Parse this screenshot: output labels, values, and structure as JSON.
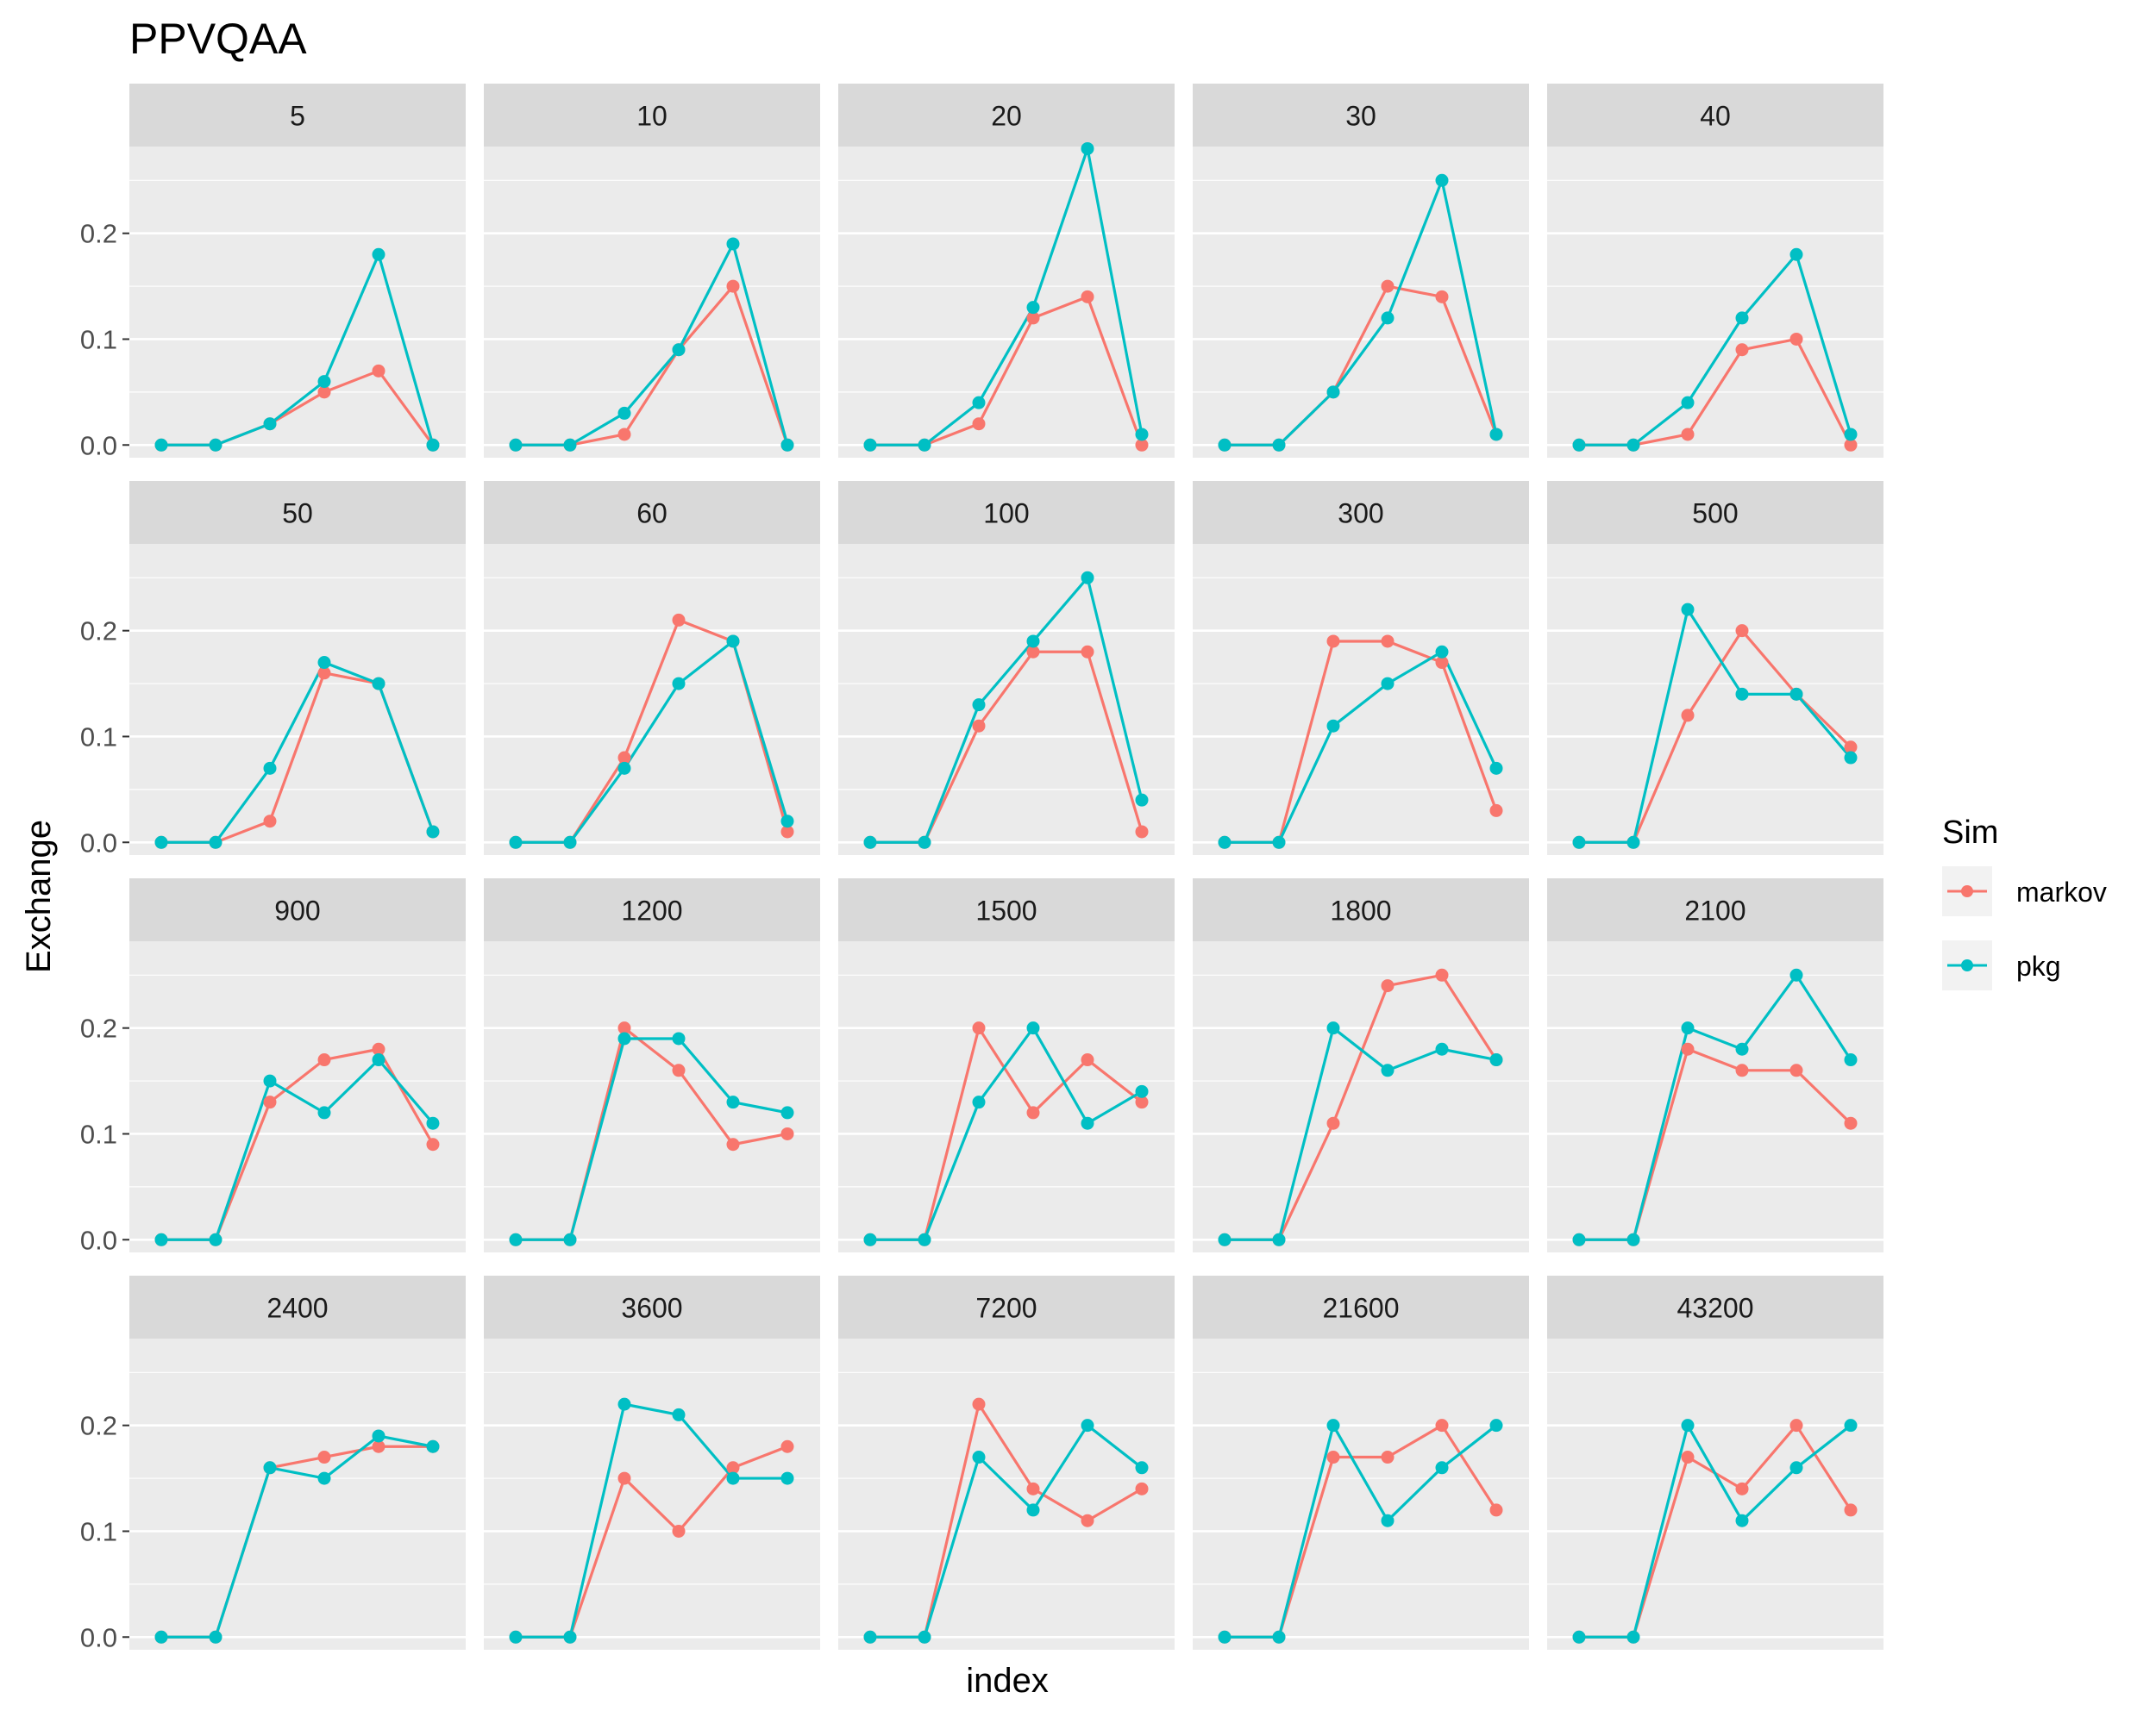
{
  "chart_data": {
    "type": "line",
    "title": "PPVQAA",
    "xlabel": "index",
    "ylabel": "Exchange",
    "ylim": [
      -0.012,
      0.282
    ],
    "y_ticks": [
      "0.0",
      "0.1",
      "0.2"
    ],
    "x_ticks": [],
    "grid": true,
    "legend": {
      "title": "Sim",
      "position": "right",
      "entries": [
        "markov",
        "pkg"
      ]
    },
    "colors": {
      "markov": "#F8766D",
      "pkg": "#00BFC4",
      "panel_bg": "#EBEBEB",
      "strip_bg": "#D9D9D9"
    },
    "x": [
      1,
      2,
      3,
      4,
      5,
      6
    ],
    "facets": [
      {
        "label": "5",
        "series": [
          {
            "name": "markov",
            "values": [
              0,
              0,
              0.02,
              0.05,
              0.07,
              0
            ]
          },
          {
            "name": "pkg",
            "values": [
              0,
              0,
              0.02,
              0.06,
              0.18,
              0
            ]
          }
        ]
      },
      {
        "label": "10",
        "series": [
          {
            "name": "markov",
            "values": [
              0,
              0,
              0.01,
              0.09,
              0.15,
              0
            ]
          },
          {
            "name": "pkg",
            "values": [
              0,
              0,
              0.03,
              0.09,
              0.19,
              0
            ]
          }
        ]
      },
      {
        "label": "20",
        "series": [
          {
            "name": "markov",
            "values": [
              0,
              0,
              0.02,
              0.12,
              0.14,
              0
            ]
          },
          {
            "name": "pkg",
            "values": [
              0,
              0,
              0.04,
              0.13,
              0.28,
              0.01
            ]
          }
        ]
      },
      {
        "label": "30",
        "series": [
          {
            "name": "markov",
            "values": [
              0,
              0,
              0.05,
              0.15,
              0.14,
              0.01
            ]
          },
          {
            "name": "pkg",
            "values": [
              0,
              0,
              0.05,
              0.12,
              0.25,
              0.01
            ]
          }
        ]
      },
      {
        "label": "40",
        "series": [
          {
            "name": "markov",
            "values": [
              0,
              0,
              0.01,
              0.09,
              0.1,
              0
            ]
          },
          {
            "name": "pkg",
            "values": [
              0,
              0,
              0.04,
              0.12,
              0.18,
              0.01
            ]
          }
        ]
      },
      {
        "label": "50",
        "series": [
          {
            "name": "markov",
            "values": [
              0,
              0,
              0.02,
              0.16,
              0.15,
              0.01
            ]
          },
          {
            "name": "pkg",
            "values": [
              0,
              0,
              0.07,
              0.17,
              0.15,
              0.01
            ]
          }
        ]
      },
      {
        "label": "60",
        "series": [
          {
            "name": "markov",
            "values": [
              0,
              0,
              0.08,
              0.21,
              0.19,
              0.01
            ]
          },
          {
            "name": "pkg",
            "values": [
              0,
              0,
              0.07,
              0.15,
              0.19,
              0.02
            ]
          }
        ]
      },
      {
        "label": "100",
        "series": [
          {
            "name": "markov",
            "values": [
              0,
              0,
              0.11,
              0.18,
              0.18,
              0.01
            ]
          },
          {
            "name": "pkg",
            "values": [
              0,
              0,
              0.13,
              0.19,
              0.25,
              0.04
            ]
          }
        ]
      },
      {
        "label": "300",
        "series": [
          {
            "name": "markov",
            "values": [
              0,
              0,
              0.19,
              0.19,
              0.17,
              0.03
            ]
          },
          {
            "name": "pkg",
            "values": [
              0,
              0,
              0.11,
              0.15,
              0.18,
              0.07
            ]
          }
        ]
      },
      {
        "label": "500",
        "series": [
          {
            "name": "markov",
            "values": [
              0,
              0,
              0.12,
              0.2,
              0.14,
              0.09
            ]
          },
          {
            "name": "pkg",
            "values": [
              0,
              0,
              0.22,
              0.14,
              0.14,
              0.08
            ]
          }
        ]
      },
      {
        "label": "900",
        "series": [
          {
            "name": "markov",
            "values": [
              0,
              0,
              0.13,
              0.17,
              0.18,
              0.09
            ]
          },
          {
            "name": "pkg",
            "values": [
              0,
              0,
              0.15,
              0.12,
              0.17,
              0.11
            ]
          }
        ]
      },
      {
        "label": "1200",
        "series": [
          {
            "name": "markov",
            "values": [
              0,
              0,
              0.2,
              0.16,
              0.09,
              0.1
            ]
          },
          {
            "name": "pkg",
            "values": [
              0,
              0,
              0.19,
              0.19,
              0.13,
              0.12
            ]
          }
        ]
      },
      {
        "label": "1500",
        "series": [
          {
            "name": "markov",
            "values": [
              0,
              0,
              0.2,
              0.12,
              0.17,
              0.13
            ]
          },
          {
            "name": "pkg",
            "values": [
              0,
              0,
              0.13,
              0.2,
              0.11,
              0.14
            ]
          }
        ]
      },
      {
        "label": "1800",
        "series": [
          {
            "name": "markov",
            "values": [
              0,
              0,
              0.11,
              0.24,
              0.25,
              0.17
            ]
          },
          {
            "name": "pkg",
            "values": [
              0,
              0,
              0.2,
              0.16,
              0.18,
              0.17
            ]
          }
        ]
      },
      {
        "label": "2100",
        "series": [
          {
            "name": "markov",
            "values": [
              0,
              0,
              0.18,
              0.16,
              0.16,
              0.11
            ]
          },
          {
            "name": "pkg",
            "values": [
              0,
              0,
              0.2,
              0.18,
              0.25,
              0.17
            ]
          }
        ]
      },
      {
        "label": "2400",
        "series": [
          {
            "name": "markov",
            "values": [
              0,
              0,
              0.16,
              0.17,
              0.18,
              0.18
            ]
          },
          {
            "name": "pkg",
            "values": [
              0,
              0,
              0.16,
              0.15,
              0.19,
              0.18
            ]
          }
        ]
      },
      {
        "label": "3600",
        "series": [
          {
            "name": "markov",
            "values": [
              0,
              0,
              0.15,
              0.1,
              0.16,
              0.18
            ]
          },
          {
            "name": "pkg",
            "values": [
              0,
              0,
              0.22,
              0.21,
              0.15,
              0.15
            ]
          }
        ]
      },
      {
        "label": "7200",
        "series": [
          {
            "name": "markov",
            "values": [
              0,
              0,
              0.22,
              0.14,
              0.11,
              0.14
            ]
          },
          {
            "name": "pkg",
            "values": [
              0,
              0,
              0.17,
              0.12,
              0.2,
              0.16
            ]
          }
        ]
      },
      {
        "label": "21600",
        "series": [
          {
            "name": "markov",
            "values": [
              0,
              0,
              0.17,
              0.17,
              0.2,
              0.12
            ]
          },
          {
            "name": "pkg",
            "values": [
              0,
              0,
              0.2,
              0.11,
              0.16,
              0.2
            ]
          }
        ]
      },
      {
        "label": "43200",
        "series": [
          {
            "name": "markov",
            "values": [
              0,
              0,
              0.17,
              0.14,
              0.2,
              0.12
            ]
          },
          {
            "name": "pkg",
            "values": [
              0,
              0,
              0.2,
              0.11,
              0.16,
              0.2
            ]
          }
        ]
      }
    ]
  }
}
